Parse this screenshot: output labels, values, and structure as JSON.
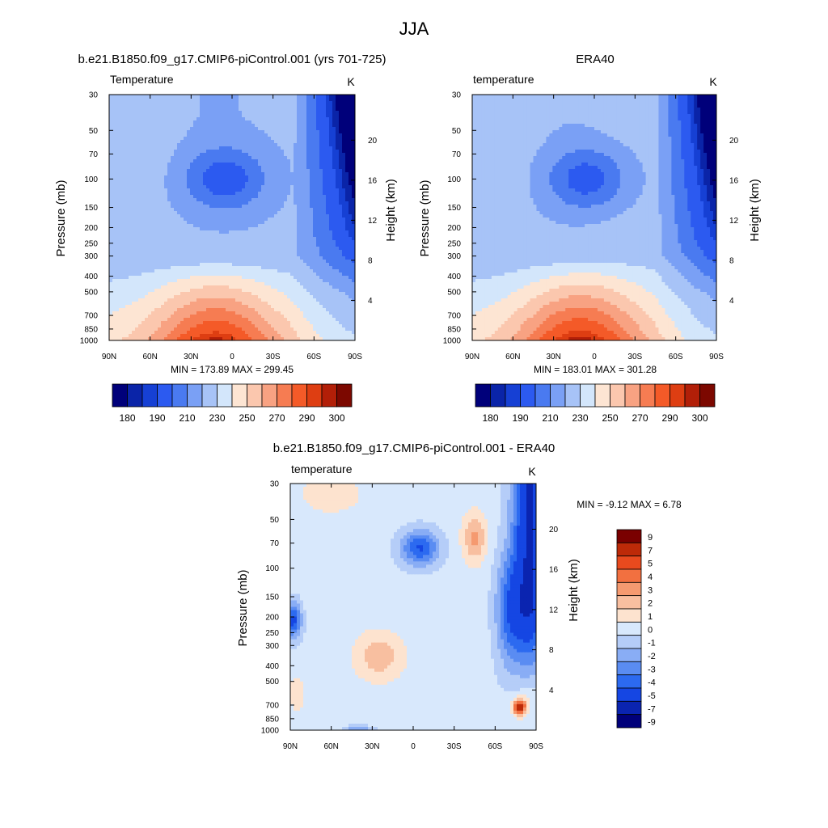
{
  "figure": {
    "title": "JJA"
  },
  "panels": {
    "model": {
      "title": "b.e21.B1850.f09_g17.CMIP6-piControl.001 (yrs 701-725)",
      "variable": "Temperature",
      "units": "K",
      "ylabel": "Pressure (mb)",
      "y2label": "Height (km)",
      "minmax": "MIN = 173.89  MAX = 299.45"
    },
    "obs": {
      "title": "ERA40",
      "variable": "temperature",
      "units": "K",
      "ylabel": "Pressure (mb)",
      "y2label": "Height (km)",
      "minmax": "MIN = 183.01  MAX = 301.28"
    },
    "diff": {
      "title": "b.e21.B1850.f09_g17.CMIP6-piControl.001 - ERA40",
      "variable": "temperature",
      "units": "K",
      "ylabel": "Pressure (mb)",
      "y2label": "Height (km)",
      "minmax": "MIN =  -9.12  MAX =   6.78"
    }
  },
  "colors": {
    "abs_palette": [
      "#00007a",
      "#0a24a8",
      "#1640d4",
      "#2c5af0",
      "#4a7af0",
      "#7aa0f5",
      "#a7c3f7",
      "#d3e6fb",
      "#fde5d3",
      "#fbc7ae",
      "#f8a282",
      "#f67c52",
      "#f45a28",
      "#de3e12",
      "#b21f08",
      "#7c0800"
    ],
    "diff_palette": [
      "#00007a",
      "#0a24b0",
      "#1546e3",
      "#2c6af0",
      "#5a8cf2",
      "#89adf5",
      "#b5cdf8",
      "#d8e8fc",
      "#fde3cf",
      "#f8bfa0",
      "#f59a70",
      "#f27040",
      "#e84a1e",
      "#bd2a08",
      "#7a0000"
    ]
  },
  "chart_data": [
    {
      "id": "model",
      "type": "contour",
      "title": "b.e21.B1850.f09_g17.CMIP6-piControl.001 (yrs 701-725)",
      "xlabel": "",
      "ylabel": "Pressure (mb)",
      "y2label": "Height (km)",
      "x_ticks": [
        "90N",
        "60N",
        "30N",
        "0",
        "30S",
        "60S",
        "90S"
      ],
      "x_values": [
        90,
        60,
        30,
        0,
        -30,
        -60,
        -90
      ],
      "y_ticks": [
        30,
        50,
        70,
        100,
        150,
        200,
        250,
        300,
        400,
        500,
        700,
        850,
        1000
      ],
      "y2_ticks": [
        4,
        8,
        12,
        16,
        20
      ],
      "ylim_pressure": [
        1000,
        30
      ],
      "contour_levels": [
        180,
        185,
        190,
        200,
        210,
        220,
        230,
        240,
        250,
        260,
        270,
        280,
        290,
        295,
        300
      ],
      "colorbar_labels": [
        180,
        190,
        210,
        230,
        250,
        270,
        290,
        300
      ],
      "min": 173.89,
      "max": 299.45,
      "units": "K"
    },
    {
      "id": "obs",
      "type": "contour",
      "title": "ERA40",
      "xlabel": "",
      "ylabel": "Pressure (mb)",
      "y2label": "Height (km)",
      "x_ticks": [
        "90N",
        "60N",
        "30N",
        "0",
        "30S",
        "60S",
        "90S"
      ],
      "x_values": [
        90,
        60,
        30,
        0,
        -30,
        -60,
        -90
      ],
      "y_ticks": [
        30,
        50,
        70,
        100,
        150,
        200,
        250,
        300,
        400,
        500,
        700,
        850,
        1000
      ],
      "y2_ticks": [
        4,
        8,
        12,
        16,
        20
      ],
      "ylim_pressure": [
        1000,
        30
      ],
      "contour_levels": [
        180,
        185,
        190,
        200,
        210,
        220,
        230,
        240,
        250,
        260,
        270,
        280,
        290,
        295,
        300
      ],
      "colorbar_labels": [
        180,
        190,
        210,
        230,
        250,
        270,
        290,
        300
      ],
      "min": 183.01,
      "max": 301.28,
      "units": "K"
    },
    {
      "id": "diff",
      "type": "contour",
      "title": "b.e21.B1850.f09_g17.CMIP6-piControl.001 - ERA40",
      "xlabel": "",
      "ylabel": "Pressure (mb)",
      "y2label": "Height (km)",
      "x_ticks": [
        "90N",
        "60N",
        "30N",
        "0",
        "30S",
        "60S",
        "90S"
      ],
      "x_values": [
        90,
        60,
        30,
        0,
        -30,
        -60,
        -90
      ],
      "y_ticks": [
        30,
        50,
        70,
        100,
        150,
        200,
        250,
        300,
        400,
        500,
        700,
        850,
        1000
      ],
      "y2_ticks": [
        4,
        8,
        12,
        16,
        20
      ],
      "ylim_pressure": [
        1000,
        30
      ],
      "contour_levels": [
        -9,
        -7,
        -5,
        -4,
        -3,
        -2,
        -1,
        0,
        1,
        2,
        3,
        4,
        5,
        7,
        9
      ],
      "colorbar_labels": [
        9,
        7,
        5,
        4,
        3,
        2,
        1,
        0,
        -1,
        -2,
        -3,
        -4,
        -5,
        -7,
        -9
      ],
      "min": -9.12,
      "max": 6.78,
      "units": "K"
    }
  ]
}
